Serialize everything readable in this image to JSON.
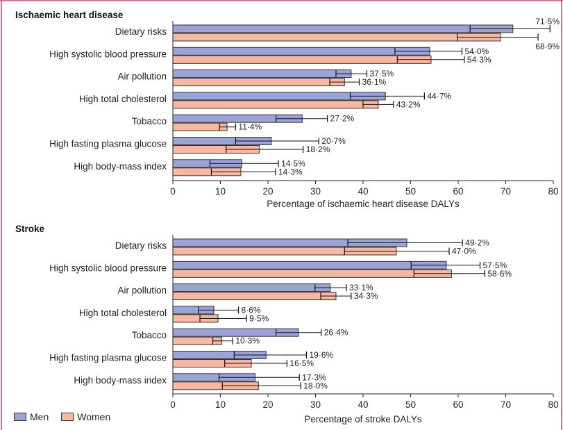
{
  "colors": {
    "men": "#9ca3d6",
    "women": "#f7b8a2",
    "frame": "#c9467a",
    "axis": "#222222"
  },
  "legend": {
    "men": "Men",
    "women": "Women"
  },
  "chart_data": [
    {
      "type": "bar",
      "orientation": "horizontal",
      "title": "Ischaemic heart disease",
      "xlabel": "Percentage of ischaemic heart disease DALYs",
      "xlim": [
        0,
        80
      ],
      "xticks": [
        0,
        10,
        20,
        30,
        40,
        50,
        60,
        70,
        80
      ],
      "categories": [
        "Dietary risks",
        "High systolic blood pressure",
        "Air pollution",
        "High total cholesterol",
        "Tobacco",
        "High fasting plasma glucose",
        "High body-mass index"
      ],
      "series": [
        {
          "name": "Men",
          "values": [
            71.5,
            54.0,
            37.5,
            44.7,
            27.2,
            20.7,
            14.5
          ],
          "labels": [
            "71·5%",
            "54·0%",
            "37·5%",
            "44·7%",
            "27·2%",
            "20·7%",
            "14·5%"
          ],
          "ci": [
            [
              62.5,
              79.3
            ],
            [
              46.7,
              60.8
            ],
            [
              34.3,
              40.8
            ],
            [
              37.3,
              52.9
            ],
            [
              21.7,
              32.5
            ],
            [
              13.2,
              30.7
            ],
            [
              7.8,
              22.2
            ]
          ]
        },
        {
          "name": "Women",
          "values": [
            68.9,
            54.3,
            36.1,
            43.2,
            11.4,
            18.2,
            14.3
          ],
          "labels": [
            "68·9%",
            "54·3%",
            "36·1%",
            "43·2%",
            "11·4%",
            "18·2%",
            "14·3%"
          ],
          "ci": [
            [
              59.8,
              76.8
            ],
            [
              47.2,
              61.3
            ],
            [
              33.0,
              39.2
            ],
            [
              40.0,
              46.4
            ],
            [
              9.8,
              13.2
            ],
            [
              11.2,
              27.4
            ],
            [
              8.1,
              21.6
            ]
          ]
        }
      ]
    },
    {
      "type": "bar",
      "orientation": "horizontal",
      "title": "Stroke",
      "xlabel": "Percentage of stroke DALYs",
      "xlim": [
        0,
        80
      ],
      "xticks": [
        0,
        10,
        20,
        30,
        40,
        50,
        60,
        70,
        80
      ],
      "categories": [
        "Dietary risks",
        "High systolic blood pressure",
        "Air pollution",
        "High total cholesterol",
        "Tobacco",
        "High fasting plasma glucose",
        "High body-mass index"
      ],
      "series": [
        {
          "name": "Men",
          "values": [
            49.2,
            57.5,
            33.1,
            8.6,
            26.4,
            19.6,
            17.3
          ],
          "labels": [
            "49·2%",
            "57·5%",
            "33·1%",
            "8·6%",
            "26·4%",
            "19·6%",
            "17·3%"
          ],
          "ci": [
            [
              36.8,
              60.9
            ],
            [
              50.1,
              64.6
            ],
            [
              29.9,
              36.5
            ],
            [
              5.4,
              13.8
            ],
            [
              21.7,
              31.2
            ],
            [
              12.9,
              28.1
            ],
            [
              9.7,
              26.6
            ]
          ]
        },
        {
          "name": "Women",
          "values": [
            47.0,
            58.6,
            34.3,
            9.5,
            10.3,
            16.5,
            18.0
          ],
          "labels": [
            "47·0%",
            "58·6%",
            "34·3%",
            "9·5%",
            "10·3%",
            "16·5%",
            "18·0%"
          ],
          "ci": [
            [
              36.1,
              58.1
            ],
            [
              50.7,
              65.6
            ],
            [
              31.1,
              37.5
            ],
            [
              5.7,
              15.5
            ],
            [
              8.4,
              12.6
            ],
            [
              10.9,
              24.0
            ],
            [
              10.4,
              26.9
            ]
          ]
        }
      ]
    }
  ]
}
